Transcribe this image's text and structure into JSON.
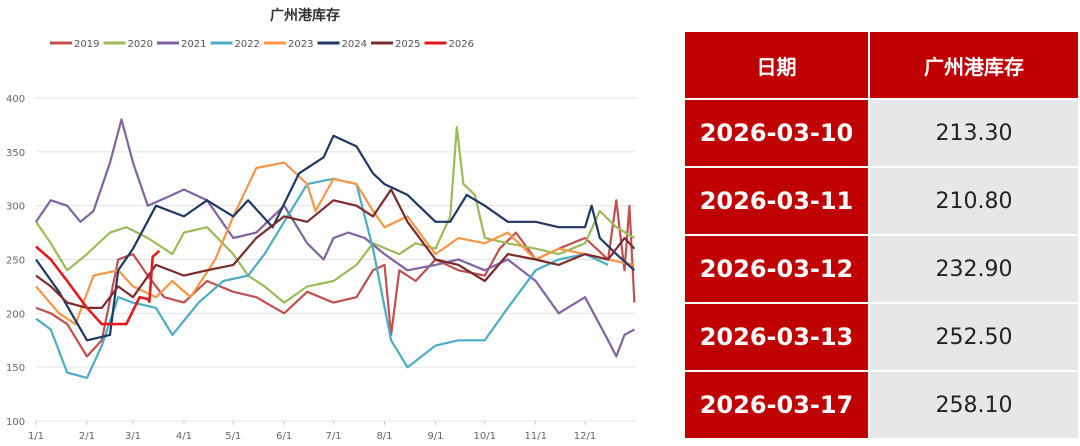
{
  "chart_data": {
    "type": "line",
    "title": "广州港库存",
    "xlabel": "",
    "ylabel": "",
    "ylim": [
      100,
      400
    ],
    "yticks": [
      "100",
      "150",
      "200",
      "250",
      "300",
      "350",
      "400"
    ],
    "xticks": [
      "1/1",
      "2/1",
      "3/1",
      "4/1",
      "5/1",
      "6/1",
      "7/1",
      "8/1",
      "9/1",
      "10/1",
      "11/1",
      "12/1"
    ],
    "grid": true,
    "legend": "top",
    "series": [
      {
        "name": "2019",
        "color": "#c0504d",
        "points": [
          [
            "1/1",
            205
          ],
          [
            "1/10",
            200
          ],
          [
            "1/20",
            190
          ],
          [
            "2/1",
            160
          ],
          [
            "2/10",
            175
          ],
          [
            "2/20",
            250
          ],
          [
            "3/1",
            255
          ],
          [
            "3/10",
            235
          ],
          [
            "3/20",
            215
          ],
          [
            "4/1",
            210
          ],
          [
            "4/15",
            230
          ],
          [
            "5/1",
            220
          ],
          [
            "5/15",
            215
          ],
          [
            "6/1",
            200
          ],
          [
            "6/15",
            220
          ],
          [
            "7/1",
            210
          ],
          [
            "7/15",
            215
          ],
          [
            "7/25",
            240
          ],
          [
            "8/1",
            245
          ],
          [
            "8/5",
            180
          ],
          [
            "8/10",
            240
          ],
          [
            "8/20",
            230
          ],
          [
            "9/1",
            250
          ],
          [
            "9/15",
            240
          ],
          [
            "10/1",
            235
          ],
          [
            "10/10",
            260
          ],
          [
            "10/20",
            275
          ],
          [
            "11/1",
            250
          ],
          [
            "11/15",
            260
          ],
          [
            "12/1",
            270
          ],
          [
            "12/15",
            250
          ],
          [
            "12/20",
            305
          ],
          [
            "12/25",
            240
          ],
          [
            "12/28",
            300
          ],
          [
            "12/31",
            210
          ]
        ]
      },
      {
        "name": "2020",
        "color": "#9bbb59",
        "points": [
          [
            "1/1",
            285
          ],
          [
            "1/10",
            265
          ],
          [
            "1/20",
            240
          ],
          [
            "2/1",
            255
          ],
          [
            "2/15",
            275
          ],
          [
            "2/25",
            280
          ],
          [
            "3/10",
            270
          ],
          [
            "3/25",
            255
          ],
          [
            "4/1",
            275
          ],
          [
            "4/15",
            280
          ],
          [
            "5/1",
            255
          ],
          [
            "5/10",
            235
          ],
          [
            "5/20",
            225
          ],
          [
            "6/1",
            210
          ],
          [
            "6/15",
            225
          ],
          [
            "7/1",
            230
          ],
          [
            "7/15",
            245
          ],
          [
            "7/25",
            265
          ],
          [
            "8/10",
            255
          ],
          [
            "8/20",
            265
          ],
          [
            "9/1",
            260
          ],
          [
            "9/10",
            290
          ],
          [
            "9/14",
            373
          ],
          [
            "9/18",
            320
          ],
          [
            "9/25",
            310
          ],
          [
            "10/1",
            270
          ],
          [
            "10/15",
            265
          ],
          [
            "11/1",
            260
          ],
          [
            "11/15",
            255
          ],
          [
            "12/1",
            265
          ],
          [
            "12/10",
            295
          ],
          [
            "12/20",
            280
          ],
          [
            "12/31",
            270
          ]
        ]
      },
      {
        "name": "2021",
        "color": "#8064a2",
        "points": [
          [
            "1/1",
            285
          ],
          [
            "1/10",
            305
          ],
          [
            "1/20",
            300
          ],
          [
            "1/28",
            285
          ],
          [
            "2/5",
            295
          ],
          [
            "2/15",
            340
          ],
          [
            "2/22",
            380
          ],
          [
            "3/1",
            340
          ],
          [
            "3/10",
            300
          ],
          [
            "3/25",
            310
          ],
          [
            "4/1",
            315
          ],
          [
            "4/15",
            305
          ],
          [
            "5/1",
            270
          ],
          [
            "5/15",
            275
          ],
          [
            "6/1",
            300
          ],
          [
            "6/15",
            265
          ],
          [
            "6/25",
            250
          ],
          [
            "7/1",
            270
          ],
          [
            "7/10",
            275
          ],
          [
            "7/20",
            270
          ],
          [
            "8/1",
            255
          ],
          [
            "8/15",
            240
          ],
          [
            "9/1",
            245
          ],
          [
            "9/15",
            250
          ],
          [
            "10/1",
            240
          ],
          [
            "10/15",
            250
          ],
          [
            "11/1",
            230
          ],
          [
            "11/15",
            200
          ],
          [
            "12/1",
            215
          ],
          [
            "12/15",
            175
          ],
          [
            "12/20",
            160
          ],
          [
            "12/25",
            180
          ],
          [
            "12/31",
            185
          ]
        ]
      },
      {
        "name": "2022",
        "color": "#4bacc6",
        "points": [
          [
            "1/1",
            195
          ],
          [
            "1/10",
            185
          ],
          [
            "1/20",
            145
          ],
          [
            "2/1",
            140
          ],
          [
            "2/10",
            170
          ],
          [
            "2/20",
            215
          ],
          [
            "3/1",
            210
          ],
          [
            "3/15",
            205
          ],
          [
            "3/25",
            180
          ],
          [
            "4/10",
            210
          ],
          [
            "4/25",
            230
          ],
          [
            "5/10",
            235
          ],
          [
            "5/20",
            255
          ],
          [
            "6/1",
            285
          ],
          [
            "6/15",
            320
          ],
          [
            "7/1",
            325
          ],
          [
            "7/15",
            320
          ],
          [
            "7/25",
            260
          ],
          [
            "8/5",
            175
          ],
          [
            "8/15",
            150
          ],
          [
            "9/1",
            170
          ],
          [
            "9/15",
            175
          ],
          [
            "10/1",
            175
          ],
          [
            "10/15",
            205
          ],
          [
            "11/1",
            240
          ],
          [
            "11/15",
            250
          ],
          [
            "12/1",
            255
          ],
          [
            "12/15",
            245
          ]
        ]
      },
      {
        "name": "2023",
        "color": "#f79646",
        "points": [
          [
            "1/1",
            225
          ],
          [
            "1/15",
            200
          ],
          [
            "1/25",
            190
          ],
          [
            "2/5",
            235
          ],
          [
            "2/20",
            240
          ],
          [
            "3/1",
            225
          ],
          [
            "3/15",
            215
          ],
          [
            "3/25",
            230
          ],
          [
            "4/5",
            215
          ],
          [
            "4/20",
            250
          ],
          [
            "5/1",
            290
          ],
          [
            "5/15",
            335
          ],
          [
            "6/1",
            340
          ],
          [
            "6/15",
            320
          ],
          [
            "6/20",
            295
          ],
          [
            "7/1",
            325
          ],
          [
            "7/15",
            320
          ],
          [
            "7/25",
            295
          ],
          [
            "8/1",
            280
          ],
          [
            "8/15",
            290
          ],
          [
            "9/1",
            255
          ],
          [
            "9/15",
            270
          ],
          [
            "10/1",
            265
          ],
          [
            "10/15",
            275
          ],
          [
            "11/1",
            250
          ],
          [
            "11/15",
            260
          ],
          [
            "12/1",
            255
          ],
          [
            "12/15",
            250
          ],
          [
            "12/31",
            245
          ]
        ]
      },
      {
        "name": "2024",
        "color": "#1f3864",
        "points": [
          [
            "1/1",
            250
          ],
          [
            "1/15",
            220
          ],
          [
            "2/1",
            175
          ],
          [
            "2/15",
            180
          ],
          [
            "2/20",
            240
          ],
          [
            "3/1",
            260
          ],
          [
            "3/15",
            300
          ],
          [
            "4/1",
            290
          ],
          [
            "4/15",
            305
          ],
          [
            "5/1",
            290
          ],
          [
            "5/10",
            305
          ],
          [
            "5/25",
            280
          ],
          [
            "6/10",
            330
          ],
          [
            "6/25",
            345
          ],
          [
            "7/1",
            365
          ],
          [
            "7/15",
            355
          ],
          [
            "7/25",
            330
          ],
          [
            "8/1",
            320
          ],
          [
            "8/15",
            310
          ],
          [
            "9/1",
            285
          ],
          [
            "9/10",
            285
          ],
          [
            "9/20",
            310
          ],
          [
            "10/1",
            300
          ],
          [
            "10/15",
            285
          ],
          [
            "11/1",
            285
          ],
          [
            "11/15",
            280
          ],
          [
            "12/1",
            280
          ],
          [
            "12/5",
            300
          ],
          [
            "12/10",
            270
          ],
          [
            "12/20",
            255
          ],
          [
            "12/31",
            240
          ]
        ]
      },
      {
        "name": "2025",
        "color": "#7b2b2b",
        "points": [
          [
            "1/1",
            235
          ],
          [
            "1/10",
            225
          ],
          [
            "1/20",
            210
          ],
          [
            "2/1",
            205
          ],
          [
            "2/10",
            205
          ],
          [
            "2/20",
            225
          ],
          [
            "3/1",
            215
          ],
          [
            "3/15",
            245
          ],
          [
            "4/1",
            235
          ],
          [
            "4/15",
            240
          ],
          [
            "5/1",
            245
          ],
          [
            "5/15",
            270
          ],
          [
            "6/1",
            290
          ],
          [
            "6/15",
            285
          ],
          [
            "7/1",
            305
          ],
          [
            "7/15",
            300
          ],
          [
            "7/25",
            290
          ],
          [
            "8/5",
            315
          ],
          [
            "8/15",
            285
          ],
          [
            "9/1",
            250
          ],
          [
            "9/15",
            245
          ],
          [
            "10/1",
            230
          ],
          [
            "10/15",
            255
          ],
          [
            "11/1",
            250
          ],
          [
            "11/15",
            245
          ],
          [
            "12/1",
            255
          ],
          [
            "12/15",
            250
          ],
          [
            "12/25",
            270
          ],
          [
            "12/31",
            260
          ]
        ]
      },
      {
        "name": "2026",
        "color": "#e31a1c",
        "points": [
          [
            "1/1",
            262
          ],
          [
            "1/10",
            250
          ],
          [
            "1/20",
            230
          ],
          [
            "2/1",
            205
          ],
          [
            "2/10",
            190
          ],
          [
            "2/25",
            190
          ],
          [
            "3/5",
            215
          ],
          [
            "3/10",
            213.3
          ],
          [
            "3/11",
            210.8
          ],
          [
            "3/12",
            232.9
          ],
          [
            "3/13",
            252.5
          ],
          [
            "3/17",
            258.1
          ]
        ]
      }
    ]
  },
  "table": {
    "headers": [
      "日期",
      "广州港库存"
    ],
    "rows": [
      [
        "2026-03-10",
        "213.30"
      ],
      [
        "2026-03-11",
        "210.80"
      ],
      [
        "2026-03-12",
        "232.90"
      ],
      [
        "2026-03-13",
        "252.50"
      ],
      [
        "2026-03-17",
        "258.10"
      ]
    ]
  }
}
